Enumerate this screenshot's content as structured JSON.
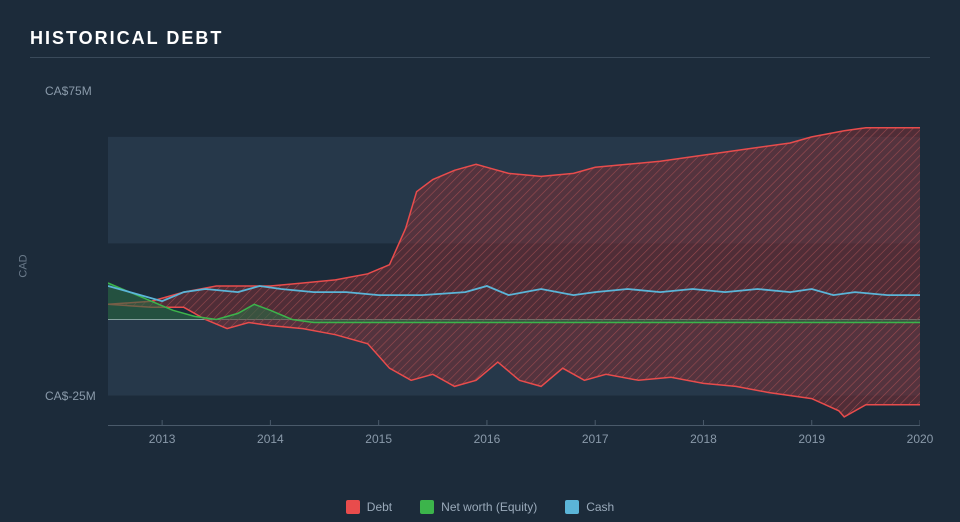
{
  "title": "HISTORICAL DEBT",
  "y_axis_label": "CAD",
  "chart": {
    "type": "area",
    "background_color": "#1c2b3a",
    "band_color": "#26384a",
    "grid_color": "#3a4a5a",
    "axis_color": "#4a5a6a",
    "zero_line_color": "#aab8c5",
    "text_color": "#8a9aaa",
    "xlim": [
      2012.5,
      2020
    ],
    "ylim": [
      -35,
      80
    ],
    "y_ticks": [
      {
        "value": 75,
        "label": "CA$75M"
      },
      {
        "value": -25,
        "label": "CA$-25M"
      }
    ],
    "x_ticks": [
      2013,
      2014,
      2015,
      2016,
      2017,
      2018,
      2019,
      2020
    ],
    "series": {
      "debt": {
        "label": "Debt",
        "stroke": "#e84c4c",
        "fill": "#7a2f35",
        "fill_opacity": 0.55,
        "hatch": true,
        "line_width": 1.5,
        "upper": [
          [
            2012.5,
            5
          ],
          [
            2012.9,
            6
          ],
          [
            2013.2,
            9
          ],
          [
            2013.5,
            11
          ],
          [
            2013.8,
            11
          ],
          [
            2014.0,
            11
          ],
          [
            2014.3,
            12
          ],
          [
            2014.6,
            13
          ],
          [
            2014.9,
            15
          ],
          [
            2015.1,
            18
          ],
          [
            2015.25,
            30
          ],
          [
            2015.35,
            42
          ],
          [
            2015.5,
            46
          ],
          [
            2015.7,
            49
          ],
          [
            2015.9,
            51
          ],
          [
            2016.0,
            50
          ],
          [
            2016.2,
            48
          ],
          [
            2016.5,
            47
          ],
          [
            2016.8,
            48
          ],
          [
            2017.0,
            50
          ],
          [
            2017.3,
            51
          ],
          [
            2017.6,
            52
          ],
          [
            2018.0,
            54
          ],
          [
            2018.4,
            56
          ],
          [
            2018.8,
            58
          ],
          [
            2019.0,
            60
          ],
          [
            2019.3,
            62
          ],
          [
            2019.5,
            63
          ],
          [
            2020.0,
            63
          ]
        ],
        "lower": [
          [
            2012.5,
            5
          ],
          [
            2012.9,
            4
          ],
          [
            2013.2,
            4
          ],
          [
            2013.4,
            0
          ],
          [
            2013.6,
            -3
          ],
          [
            2013.8,
            -1
          ],
          [
            2014.0,
            -2
          ],
          [
            2014.3,
            -3
          ],
          [
            2014.6,
            -5
          ],
          [
            2014.9,
            -8
          ],
          [
            2015.1,
            -16
          ],
          [
            2015.3,
            -20
          ],
          [
            2015.5,
            -18
          ],
          [
            2015.7,
            -22
          ],
          [
            2015.9,
            -20
          ],
          [
            2016.1,
            -14
          ],
          [
            2016.3,
            -20
          ],
          [
            2016.5,
            -22
          ],
          [
            2016.7,
            -16
          ],
          [
            2016.9,
            -20
          ],
          [
            2017.1,
            -18
          ],
          [
            2017.4,
            -20
          ],
          [
            2017.7,
            -19
          ],
          [
            2018.0,
            -21
          ],
          [
            2018.3,
            -22
          ],
          [
            2018.6,
            -24
          ],
          [
            2019.0,
            -26
          ],
          [
            2019.25,
            -30
          ],
          [
            2019.3,
            -32
          ],
          [
            2019.5,
            -28
          ],
          [
            2020.0,
            -28
          ]
        ]
      },
      "equity": {
        "label": "Net worth (Equity)",
        "stroke": "#3cb44b",
        "fill": "#2a6a45",
        "fill_opacity": 0.6,
        "line_width": 1.5,
        "points": [
          [
            2012.5,
            12
          ],
          [
            2012.7,
            9
          ],
          [
            2012.9,
            6
          ],
          [
            2013.1,
            3
          ],
          [
            2013.3,
            1
          ],
          [
            2013.5,
            0
          ],
          [
            2013.7,
            2
          ],
          [
            2013.85,
            5
          ],
          [
            2014.0,
            3
          ],
          [
            2014.2,
            0
          ],
          [
            2014.4,
            -1
          ],
          [
            2014.7,
            -1
          ],
          [
            2015.0,
            -1
          ],
          [
            2015.5,
            -1
          ],
          [
            2016.0,
            -1
          ],
          [
            2017.0,
            -1
          ],
          [
            2018.0,
            -1
          ],
          [
            2019.0,
            -1
          ],
          [
            2020.0,
            -1
          ]
        ]
      },
      "cash": {
        "label": "Cash",
        "stroke": "#5bb5d8",
        "fill": "none",
        "line_width": 1.8,
        "points": [
          [
            2012.5,
            11
          ],
          [
            2012.8,
            8
          ],
          [
            2013.0,
            6
          ],
          [
            2013.2,
            9
          ],
          [
            2013.4,
            10
          ],
          [
            2013.7,
            9
          ],
          [
            2013.9,
            11
          ],
          [
            2014.1,
            10
          ],
          [
            2014.4,
            9
          ],
          [
            2014.7,
            9
          ],
          [
            2015.0,
            8
          ],
          [
            2015.4,
            8
          ],
          [
            2015.8,
            9
          ],
          [
            2016.0,
            11
          ],
          [
            2016.2,
            8
          ],
          [
            2016.5,
            10
          ],
          [
            2016.8,
            8
          ],
          [
            2017.0,
            9
          ],
          [
            2017.3,
            10
          ],
          [
            2017.6,
            9
          ],
          [
            2017.9,
            10
          ],
          [
            2018.2,
            9
          ],
          [
            2018.5,
            10
          ],
          [
            2018.8,
            9
          ],
          [
            2019.0,
            10
          ],
          [
            2019.2,
            8
          ],
          [
            2019.4,
            9
          ],
          [
            2019.7,
            8
          ],
          [
            2020.0,
            8
          ]
        ]
      }
    }
  },
  "legend_order": [
    "debt",
    "equity",
    "cash"
  ]
}
